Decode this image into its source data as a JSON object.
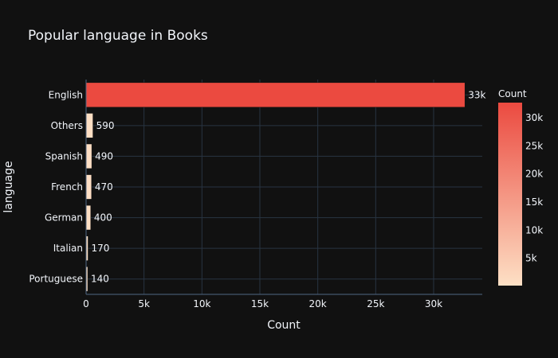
{
  "chart_data": {
    "type": "bar",
    "orientation": "horizontal",
    "title": "Popular language in Books",
    "xlabel": "Count",
    "ylabel": "language",
    "categories": [
      "English",
      "Others",
      "Spanish",
      "French",
      "German",
      "Italian",
      "Portuguese"
    ],
    "values": [
      32700,
      590,
      490,
      470,
      400,
      170,
      140
    ],
    "data_labels": [
      "33k",
      "590",
      "490",
      "470",
      "400",
      "170",
      "140"
    ],
    "xlim": [
      0,
      34200
    ],
    "x_ticks": [
      0,
      5000,
      10000,
      15000,
      20000,
      25000,
      30000
    ],
    "x_tick_labels": [
      "0",
      "5k",
      "10k",
      "15k",
      "20k",
      "25k",
      "30k"
    ],
    "grid": true,
    "colorbar": {
      "title": "Count",
      "range": [
        140,
        32700
      ],
      "ticks": [
        5000,
        10000,
        15000,
        20000,
        25000,
        30000
      ],
      "tick_labels": [
        "5k",
        "10k",
        "15k",
        "20k",
        "25k",
        "30k"
      ],
      "color_low": "#fde0c5",
      "color_high": "#eb4a40"
    },
    "colors": {
      "background": "#111111",
      "grid": "#283442",
      "text": "#f2f5fa"
    }
  }
}
